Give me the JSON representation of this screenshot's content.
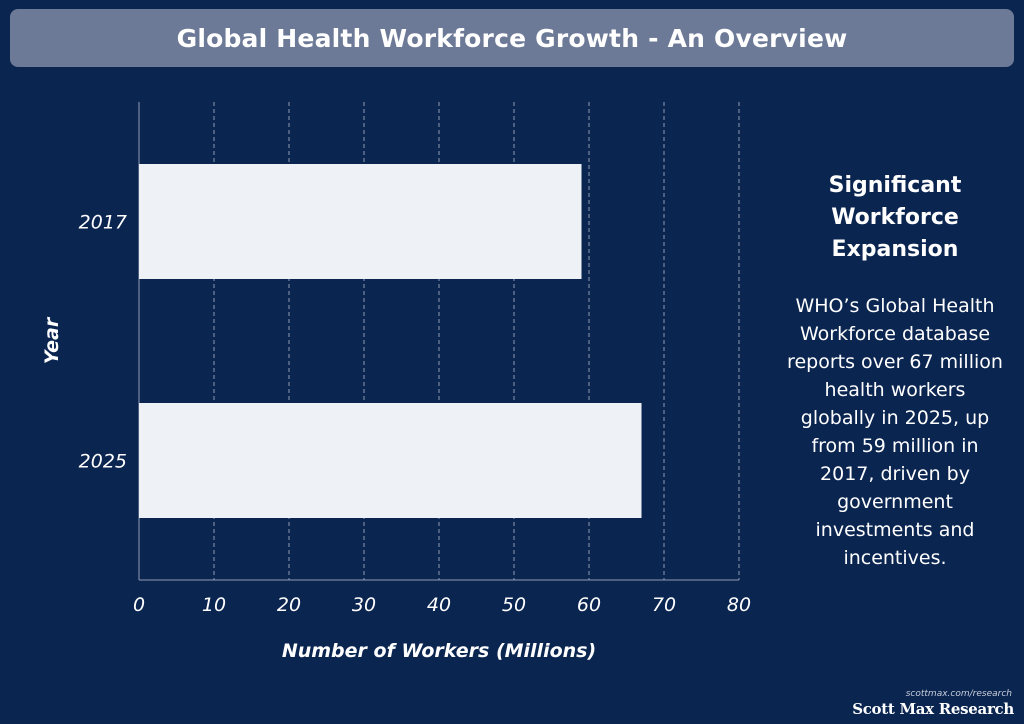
{
  "header": {
    "title": "Global Health Workforce Growth - An Overview"
  },
  "chart_data": {
    "type": "bar",
    "orientation": "horizontal",
    "categories": [
      "2017",
      "2025"
    ],
    "values": [
      59,
      67
    ],
    "xlabel": "Number of Workers (Millions)",
    "ylabel": "Year",
    "xlim": [
      0,
      80
    ],
    "xticks": [
      "0",
      "10",
      "20",
      "30",
      "40",
      "50",
      "60",
      "70",
      "80"
    ],
    "grid": "vertical dashed",
    "bar_color": "#eef2f7",
    "background": "#0b2551"
  },
  "side_panel": {
    "heading": "Significant Workforce Expansion",
    "body": "WHO’s Global Health Workforce database reports over 67 million health workers globally in 2025, up from 59 million in 2017, driven by government investments and incentives."
  },
  "branding": {
    "url": "scottmax.com/research",
    "name": "Scott Max Research"
  }
}
